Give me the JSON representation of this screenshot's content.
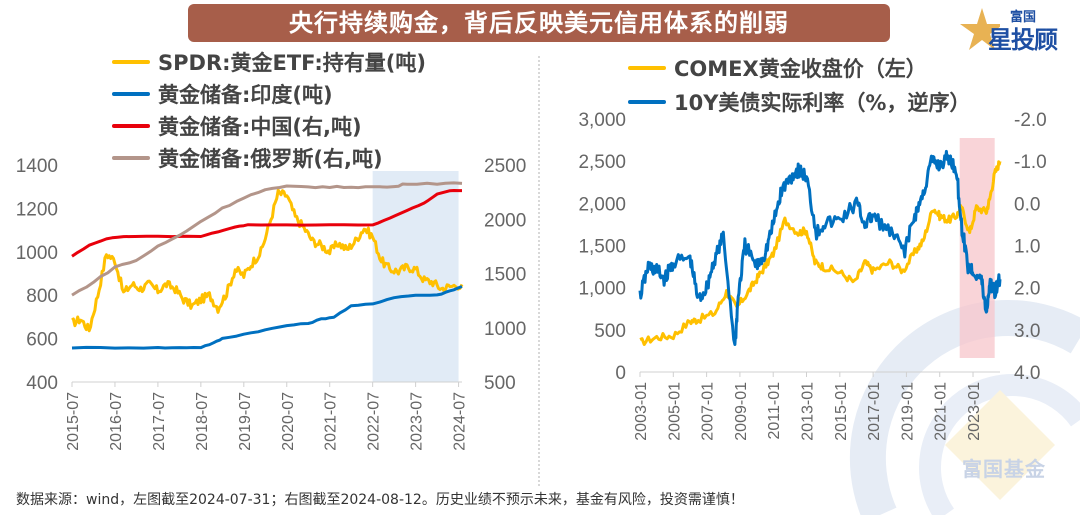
{
  "title": "央行持续购金，背后反映美元信用体系的削弱",
  "logo": {
    "top": "富国",
    "main": "星投顾",
    "icon": "star-icon"
  },
  "watermark": "富国基金",
  "footer": "数据来源：wind，左图截至2024-07-31；右图截至2024-08-12。历史业绩不预示未来，基金有风险，投资需谨慎！",
  "colors": {
    "title_bg": "#A75E4A",
    "spdr": "#FFC000",
    "india": "#0070C0",
    "china": "#E8000B",
    "russia": "#B3958A",
    "comex": "#FFC000",
    "real_rate": "#0070C0",
    "highlight_left": "#DCE8F5",
    "highlight_right": "#F7C6CB"
  },
  "chart_data": [
    {
      "type": "line",
      "title": "",
      "legend": [
        "SPDR:黄金ETF:持有量(吨)",
        "黄金储备:印度(吨)",
        "黄金储备:中国(右,吨)",
        "黄金储备:俄罗斯(右,吨)"
      ],
      "legend_position": "top",
      "x_ticks": [
        "2015-07",
        "2016-07",
        "2017-07",
        "2018-07",
        "2019-07",
        "2020-07",
        "2021-07",
        "2022-07",
        "2023-07",
        "2024-07"
      ],
      "x_range": [
        2015.5,
        2024.58
      ],
      "ylim_left": [
        400,
        1400
      ],
      "yticks_left": [
        "400",
        "600",
        "800",
        "1000",
        "1200",
        "1400"
      ],
      "ylim_right": [
        500,
        2500
      ],
      "yticks_right": [
        "500",
        "1000",
        "1500",
        "2000",
        "2500"
      ],
      "highlight": {
        "from": 2022.5,
        "to": 2024.5,
        "label": "2022-07 onward"
      },
      "series": [
        {
          "name": "SPDR:黄金ETF:持有量(吨)",
          "axis": "left",
          "x": [
            2015.5,
            2015.7,
            2015.9,
            2016.1,
            2016.3,
            2016.5,
            2016.7,
            2016.9,
            2017.1,
            2017.3,
            2017.5,
            2017.7,
            2017.9,
            2018.1,
            2018.3,
            2018.5,
            2018.7,
            2018.9,
            2019.1,
            2019.3,
            2019.5,
            2019.7,
            2019.9,
            2020.1,
            2020.3,
            2020.5,
            2020.7,
            2020.9,
            2021.1,
            2021.3,
            2021.5,
            2021.7,
            2021.9,
            2022.1,
            2022.3,
            2022.5,
            2022.7,
            2022.9,
            2023.1,
            2023.3,
            2023.5,
            2023.7,
            2023.9,
            2024.1,
            2024.3,
            2024.58
          ],
          "values": [
            670,
            690,
            640,
            800,
            990,
            960,
            810,
            850,
            830,
            850,
            820,
            850,
            830,
            780,
            750,
            780,
            800,
            740,
            810,
            920,
            890,
            950,
            1000,
            1130,
            1270,
            1260,
            1160,
            1110,
            1050,
            1030,
            1000,
            1040,
            1010,
            1050,
            1110,
            1070,
            960,
            920,
            910,
            930,
            920,
            870,
            860,
            830,
            840,
            850
          ]
        },
        {
          "name": "黄金储备:印度(吨)",
          "axis": "left",
          "x": [
            2015.5,
            2016.5,
            2017.5,
            2018.0,
            2018.5,
            2018.8,
            2019.0,
            2019.5,
            2020.0,
            2020.5,
            2021.0,
            2021.3,
            2021.6,
            2022.0,
            2022.5,
            2023.0,
            2023.5,
            2024.0,
            2024.3,
            2024.58
          ],
          "values": [
            558,
            558,
            558,
            558,
            560,
            580,
            600,
            620,
            640,
            660,
            670,
            690,
            700,
            750,
            760,
            790,
            800,
            800,
            820,
            840
          ]
        },
        {
          "name": "黄金储备:中国(右,吨)",
          "axis": "right",
          "x": [
            2015.5,
            2015.9,
            2016.3,
            2016.7,
            2017.5,
            2018.5,
            2018.9,
            2019.3,
            2019.6,
            2020.5,
            2021.5,
            2022.5,
            2022.9,
            2023.3,
            2023.7,
            2024.0,
            2024.3,
            2024.58
          ],
          "values": [
            1660,
            1760,
            1820,
            1842,
            1842,
            1842,
            1885,
            1930,
            1948,
            1948,
            1948,
            1948,
            2010,
            2080,
            2150,
            2230,
            2264,
            2264
          ]
        },
        {
          "name": "黄金储备:俄罗斯(右,吨)",
          "axis": "right",
          "x": [
            2015.5,
            2016.0,
            2016.5,
            2017.0,
            2017.5,
            2018.0,
            2018.5,
            2019.0,
            2019.5,
            2020.0,
            2020.5,
            2021.0,
            2021.5,
            2022.0,
            2022.5,
            2023.0,
            2023.3,
            2024.0,
            2024.58
          ],
          "values": [
            1300,
            1420,
            1560,
            1620,
            1750,
            1850,
            1980,
            2100,
            2200,
            2270,
            2300,
            2300,
            2295,
            2298,
            2298,
            2298,
            2330,
            2330,
            2330
          ]
        }
      ]
    },
    {
      "type": "line",
      "title": "",
      "legend": [
        "COMEX黄金收盘价（左）",
        "10Y美债实际利率（%，逆序）"
      ],
      "legend_position": "top",
      "x_ticks": [
        "2003-01",
        "2005-01",
        "2007-01",
        "2009-01",
        "2011-01",
        "2013-01",
        "2015-01",
        "2017-01",
        "2019-01",
        "2021-01",
        "2023-01"
      ],
      "x_range": [
        2003.0,
        2024.62
      ],
      "ylim_left": [
        0,
        3000
      ],
      "yticks_left": [
        "0",
        "500",
        "1,000",
        "1,500",
        "2,000",
        "2,500",
        "3,000"
      ],
      "ylim_right": [
        4.0,
        -2.0
      ],
      "yticks_right": [
        "-2.0",
        "-1.0",
        "0.0",
        "1.0",
        "2.0",
        "3.0",
        "4.0"
      ],
      "right_axis_inverted": true,
      "highlight": {
        "from": 2022.2,
        "to": 2024.3,
        "label": "2022 onward"
      },
      "series": [
        {
          "name": "COMEX黄金收盘价（左）",
          "axis": "left",
          "x": [
            2003.0,
            2004.0,
            2005.0,
            2006.0,
            2006.5,
            2007.5,
            2008.2,
            2008.8,
            2009.5,
            2010.0,
            2010.5,
            2011.0,
            2011.7,
            2012.5,
            2013.0,
            2013.5,
            2014.0,
            2015.0,
            2015.9,
            2016.5,
            2017.0,
            2018.0,
            2018.8,
            2019.5,
            2020.0,
            2020.6,
            2021.0,
            2021.5,
            2022.0,
            2022.3,
            2022.8,
            2023.2,
            2023.8,
            2024.0,
            2024.3,
            2024.62
          ],
          "values": [
            350,
            410,
            430,
            600,
            620,
            700,
            950,
            760,
            950,
            1100,
            1250,
            1400,
            1800,
            1650,
            1680,
            1300,
            1250,
            1180,
            1060,
            1300,
            1200,
            1300,
            1200,
            1420,
            1550,
            1950,
            1850,
            1800,
            1850,
            1950,
            1650,
            1950,
            1900,
            2050,
            2350,
            2500
          ]
        },
        {
          "name": "10Y美债实际利率（%，逆序）",
          "axis": "right",
          "x": [
            2003.0,
            2003.5,
            2004.0,
            2004.5,
            2005.0,
            2006.0,
            2006.5,
            2007.0,
            2007.5,
            2008.0,
            2008.7,
            2008.9,
            2009.3,
            2010.0,
            2010.5,
            2011.0,
            2011.5,
            2012.0,
            2012.5,
            2013.0,
            2013.6,
            2014.0,
            2015.0,
            2016.0,
            2016.5,
            2017.0,
            2018.0,
            2018.9,
            2019.5,
            2020.0,
            2020.5,
            2021.0,
            2021.5,
            2022.0,
            2022.3,
            2022.7,
            2023.0,
            2023.5,
            2023.8,
            2024.0,
            2024.3,
            2024.62
          ],
          "values": [
            2.2,
            1.5,
            1.6,
            1.8,
            1.4,
            1.3,
            2.3,
            2.0,
            1.3,
            0.8,
            3.4,
            2.2,
            1.0,
            1.5,
            1.2,
            0.5,
            -0.3,
            -0.6,
            -0.8,
            -0.6,
            0.7,
            0.5,
            0.4,
            0.0,
            0.5,
            0.3,
            0.7,
            1.1,
            0.3,
            -0.2,
            -1.0,
            -0.9,
            -1.1,
            -0.8,
            0.5,
            1.5,
            1.6,
            1.8,
            2.6,
            1.9,
            2.1,
            1.8
          ]
        }
      ]
    }
  ]
}
